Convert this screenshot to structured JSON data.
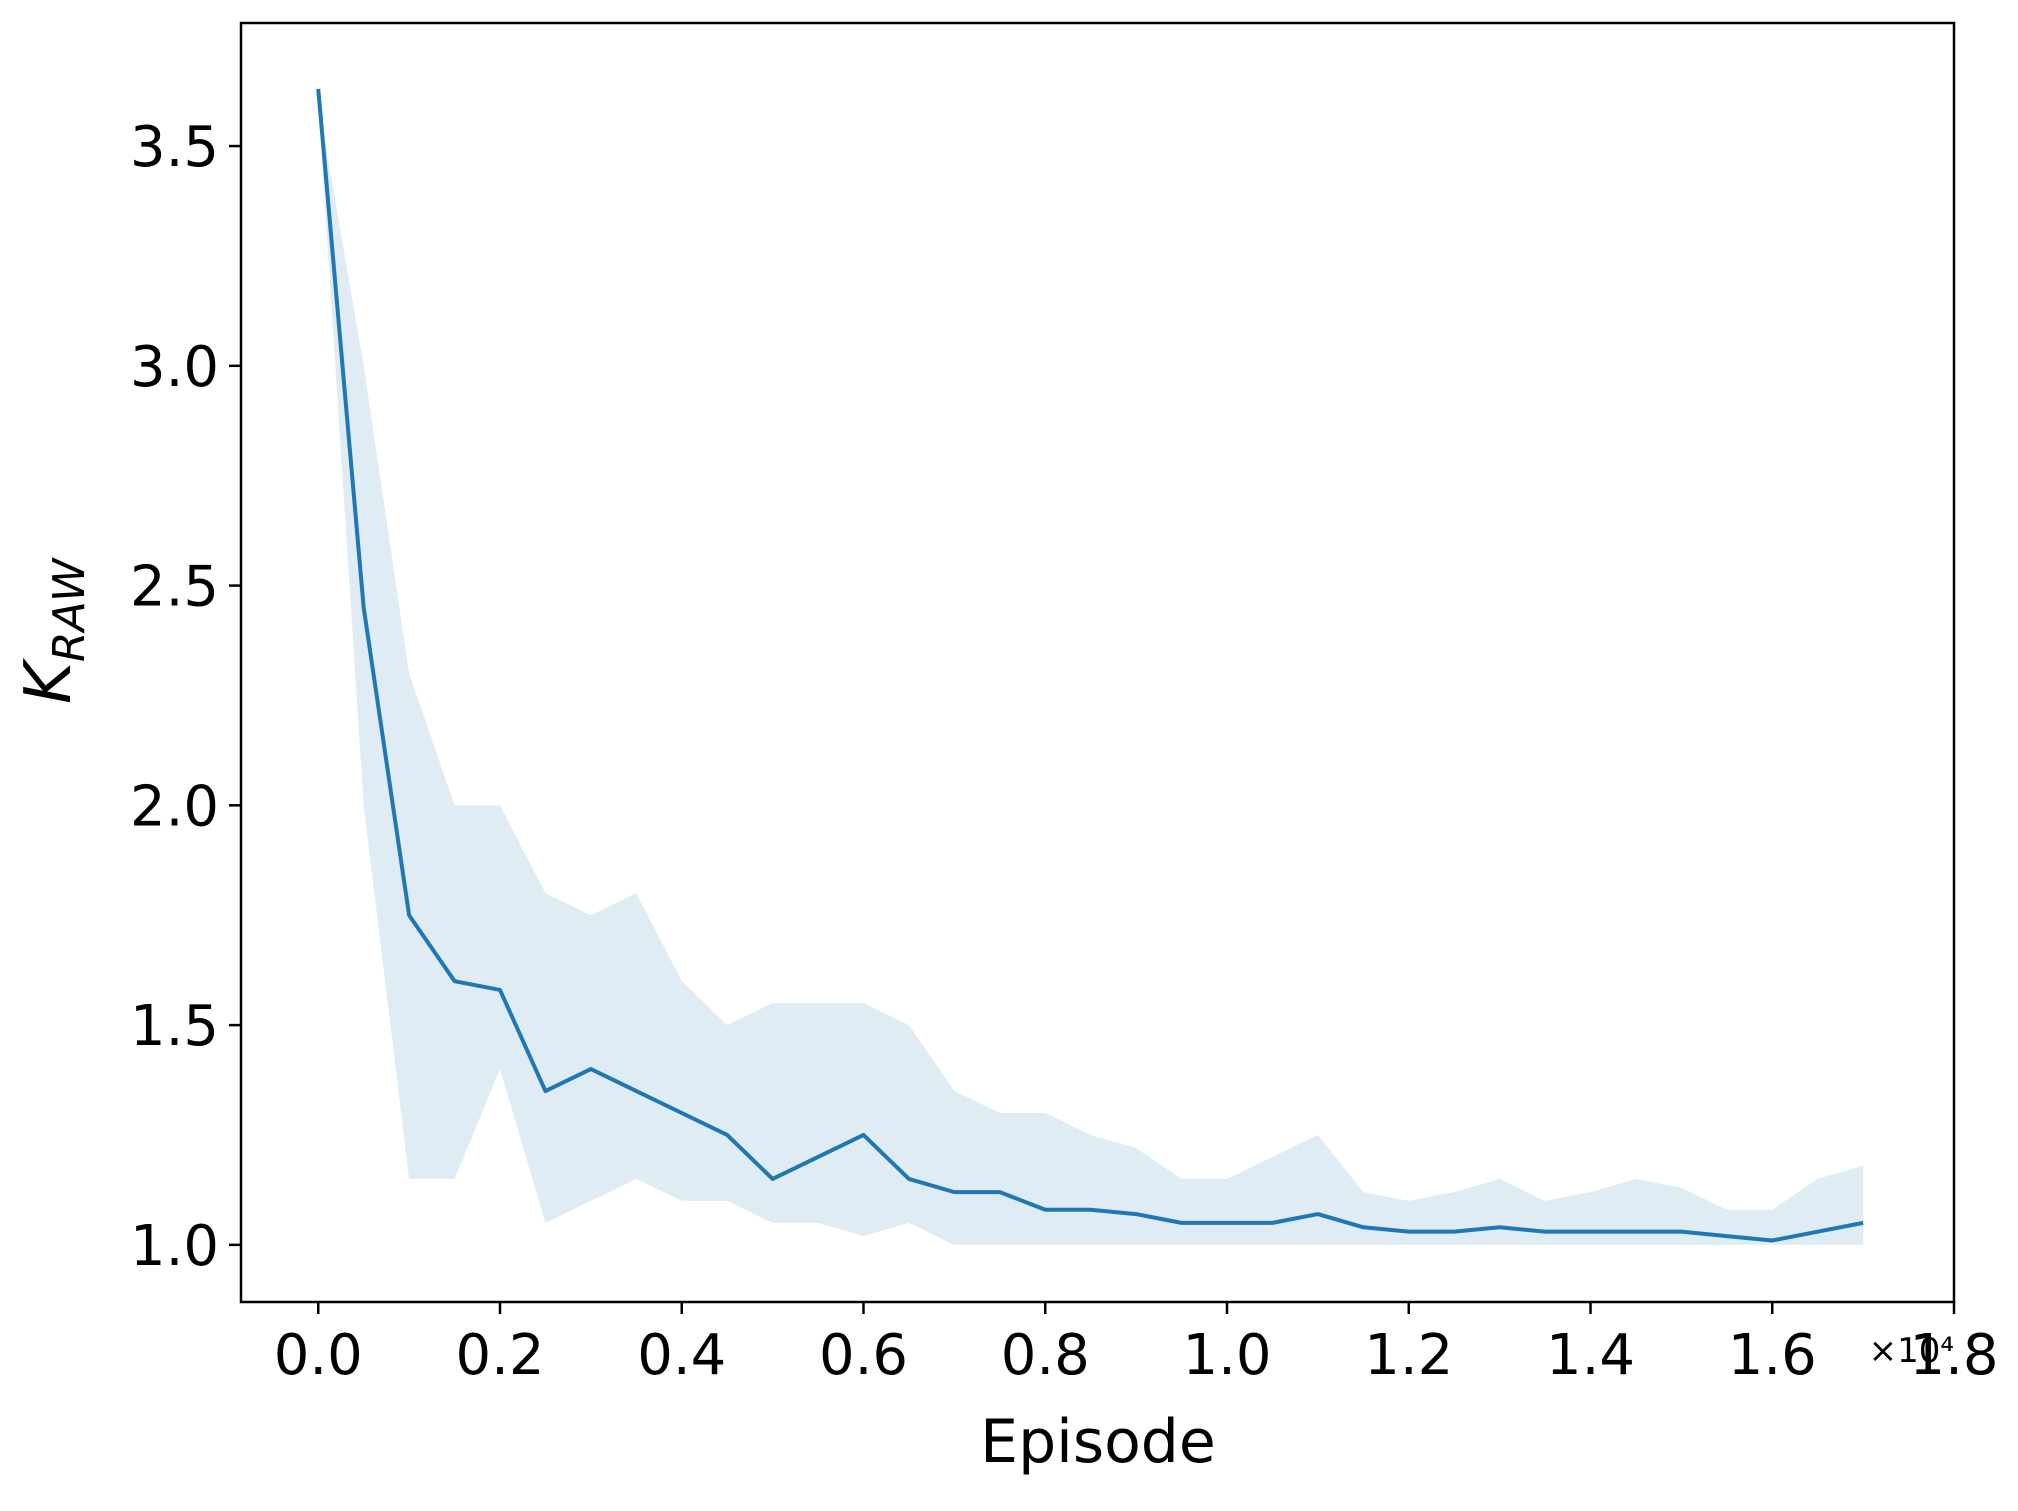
{
  "chart_data": {
    "type": "line",
    "xlabel": "Episode",
    "x_offset_label": "×10⁴",
    "ylabel": "K",
    "ylabel_subscript": "RAW",
    "x": [
      0,
      0.05,
      0.1,
      0.15,
      0.2,
      0.25,
      0.3,
      0.35,
      0.4,
      0.45,
      0.5,
      0.55,
      0.6,
      0.65,
      0.7,
      0.75,
      0.8,
      0.85,
      0.9,
      0.95,
      1.0,
      1.05,
      1.1,
      1.15,
      1.2,
      1.25,
      1.3,
      1.35,
      1.4,
      1.45,
      1.5,
      1.55,
      1.6,
      1.65,
      1.7
    ],
    "series": [
      {
        "color": "#1f77b4",
        "values": [
          3.63,
          2.45,
          1.75,
          1.6,
          1.58,
          1.35,
          1.4,
          1.35,
          1.3,
          1.25,
          1.15,
          1.2,
          1.25,
          1.15,
          1.12,
          1.12,
          1.08,
          1.08,
          1.07,
          1.05,
          1.05,
          1.05,
          1.07,
          1.04,
          1.03,
          1.03,
          1.04,
          1.03,
          1.03,
          1.03,
          1.03,
          1.02,
          1.01,
          1.03,
          1.05
        ],
        "upper": [
          3.6,
          3.0,
          2.3,
          2.0,
          2.0,
          1.8,
          1.75,
          1.8,
          1.6,
          1.5,
          1.55,
          1.55,
          1.55,
          1.5,
          1.35,
          1.3,
          1.3,
          1.25,
          1.22,
          1.15,
          1.15,
          1.2,
          1.25,
          1.12,
          1.1,
          1.12,
          1.15,
          1.1,
          1.12,
          1.15,
          1.13,
          1.08,
          1.08,
          1.15,
          1.18
        ],
        "lower": [
          3.6,
          2.0,
          1.15,
          1.15,
          1.4,
          1.05,
          1.1,
          1.15,
          1.1,
          1.1,
          1.05,
          1.05,
          1.02,
          1.05,
          1.0,
          1.0,
          1.0,
          1.0,
          1.0,
          1.0,
          1.0,
          1.0,
          1.0,
          1.0,
          1.0,
          1.0,
          1.0,
          1.0,
          1.0,
          1.0,
          1.0,
          1.0,
          1.0,
          1.0,
          1.0
        ]
      }
    ],
    "xlim": [
      -0.085,
      1.8
    ],
    "xticks": [
      {
        "value": 0,
        "label": "0.0"
      },
      0.2,
      0.4,
      0.6,
      0.8,
      {
        "value": 1,
        "label": "1.0"
      },
      1.2,
      1.4,
      1.6,
      1.8
    ],
    "ylim": [
      0.87,
      3.78
    ],
    "yticks": [
      {
        "value": 1,
        "label": "1.0"
      },
      1.5,
      {
        "value": 2,
        "label": "2.0"
      },
      2.5,
      {
        "value": 3,
        "label": "3.0"
      },
      3.5
    ],
    "band_opacity": 0.14
  }
}
